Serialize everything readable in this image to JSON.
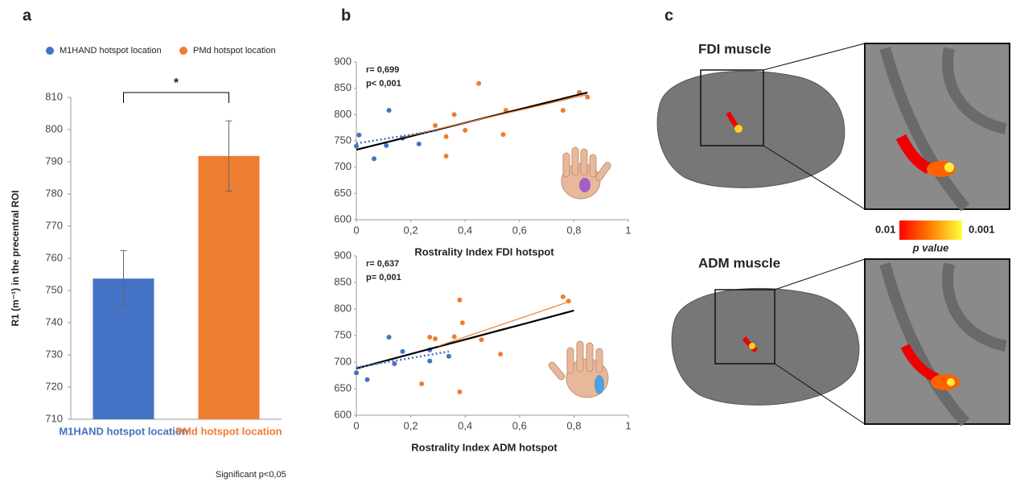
{
  "figure": {
    "panel_labels": [
      "a",
      "b",
      "c"
    ],
    "note": "Significant p<0,05",
    "brain": {
      "titles": [
        "FDI muscle",
        "ADM muscle"
      ],
      "colorbar_low": "0.01",
      "colorbar_high": "0.001",
      "colorbar_label": "p value"
    }
  },
  "chart_data": [
    {
      "type": "bar",
      "categories": [
        "M1HAND hotspot location",
        "PMd hotspot location"
      ],
      "values": [
        753.7,
        791.8
      ],
      "errors": [
        8.7,
        10.9
      ],
      "colors": [
        "#4472c4",
        "#ed7d31"
      ],
      "y_label": "R1 (m⁻¹) in the precentral ROI",
      "significance": "*",
      "ylim": [
        710,
        810
      ],
      "yticks": [
        710,
        720,
        730,
        740,
        750,
        760,
        770,
        780,
        790,
        800,
        810
      ],
      "legend": "top"
    },
    {
      "type": "scatter",
      "x_label": "Rostrality Index FDI hotspot",
      "annotations": [
        "r= 0,699",
        "p< 0,001"
      ],
      "xlim": [
        0,
        1
      ],
      "ylim": [
        600,
        900
      ],
      "xticks": [
        0,
        {
          "value": 0.2,
          "label": "0,2"
        },
        {
          "value": 0.4,
          "label": "0,4"
        },
        {
          "value": 0.6,
          "label": "0,6"
        },
        {
          "value": 0.8,
          "label": "0,8"
        },
        1
      ],
      "yticks": [
        600,
        650,
        700,
        750,
        800,
        850,
        900
      ],
      "series": [
        {
          "color": "#4472c4",
          "x": [
            0,
            0.01,
            0.065,
            0.12,
            0.11,
            0.17,
            0.23
          ],
          "values": [
            740,
            761,
            716,
            808,
            741,
            755,
            744
          ]
        },
        {
          "color": "#ed7d31",
          "x": [
            0.29,
            0.33,
            0.33,
            0.36,
            0.4,
            0.45,
            0.54,
            0.55,
            0.76,
            0.82,
            0.85
          ],
          "values": [
            779,
            758,
            721,
            800,
            770,
            859,
            762,
            808,
            808,
            842,
            833
          ]
        }
      ],
      "trend_lines": [
        {
          "color": "#000000",
          "style": "solid",
          "x": [
            0,
            0.85
          ],
          "y": [
            733,
            842
          ]
        },
        {
          "color": "#ed7d31",
          "style": "thin",
          "x": [
            0.17,
            0.85
          ],
          "y": [
            757,
            838
          ]
        },
        {
          "color": "#4472c4",
          "style": "dotted",
          "x": [
            0,
            0.3
          ],
          "y": [
            745,
            770
          ]
        }
      ]
    },
    {
      "type": "scatter",
      "x_label": "Rostrality Index ADM hotspot",
      "annotations": [
        "r= 0,637",
        "p= 0,001"
      ],
      "xlim": [
        0,
        1
      ],
      "ylim": [
        600,
        900
      ],
      "xticks": [
        0,
        {
          "value": 0.2,
          "label": "0,2"
        },
        {
          "value": 0.4,
          "label": "0,4"
        },
        {
          "value": 0.6,
          "label": "0,6"
        },
        {
          "value": 0.8,
          "label": "0,8"
        },
        1
      ],
      "yticks": [
        600,
        650,
        700,
        750,
        800,
        850,
        900
      ],
      "series": [
        {
          "color": "#4472c4",
          "x": [
            0,
            0.04,
            0.12,
            0.14,
            0.17,
            0.27,
            0.27,
            0.34
          ],
          "values": [
            680,
            667,
            747,
            697,
            720,
            702,
            723,
            711
          ]
        },
        {
          "color": "#ed7d31",
          "x": [
            0.24,
            0.27,
            0.29,
            0.36,
            0.38,
            0.38,
            0.39,
            0.46,
            0.53,
            0.76,
            0.78
          ],
          "values": [
            659,
            747,
            744,
            748,
            817,
            644,
            774,
            742,
            715,
            823,
            815
          ]
        }
      ],
      "trend_lines": [
        {
          "color": "#000000",
          "style": "solid",
          "x": [
            0,
            0.8
          ],
          "y": [
            688,
            797
          ]
        },
        {
          "color": "#ed7d31",
          "style": "thin",
          "x": [
            0.3,
            0.79
          ],
          "y": [
            730,
            815
          ]
        },
        {
          "color": "#4472c4",
          "style": "dotted",
          "x": [
            0,
            0.34
          ],
          "y": [
            690,
            720
          ]
        }
      ]
    }
  ]
}
